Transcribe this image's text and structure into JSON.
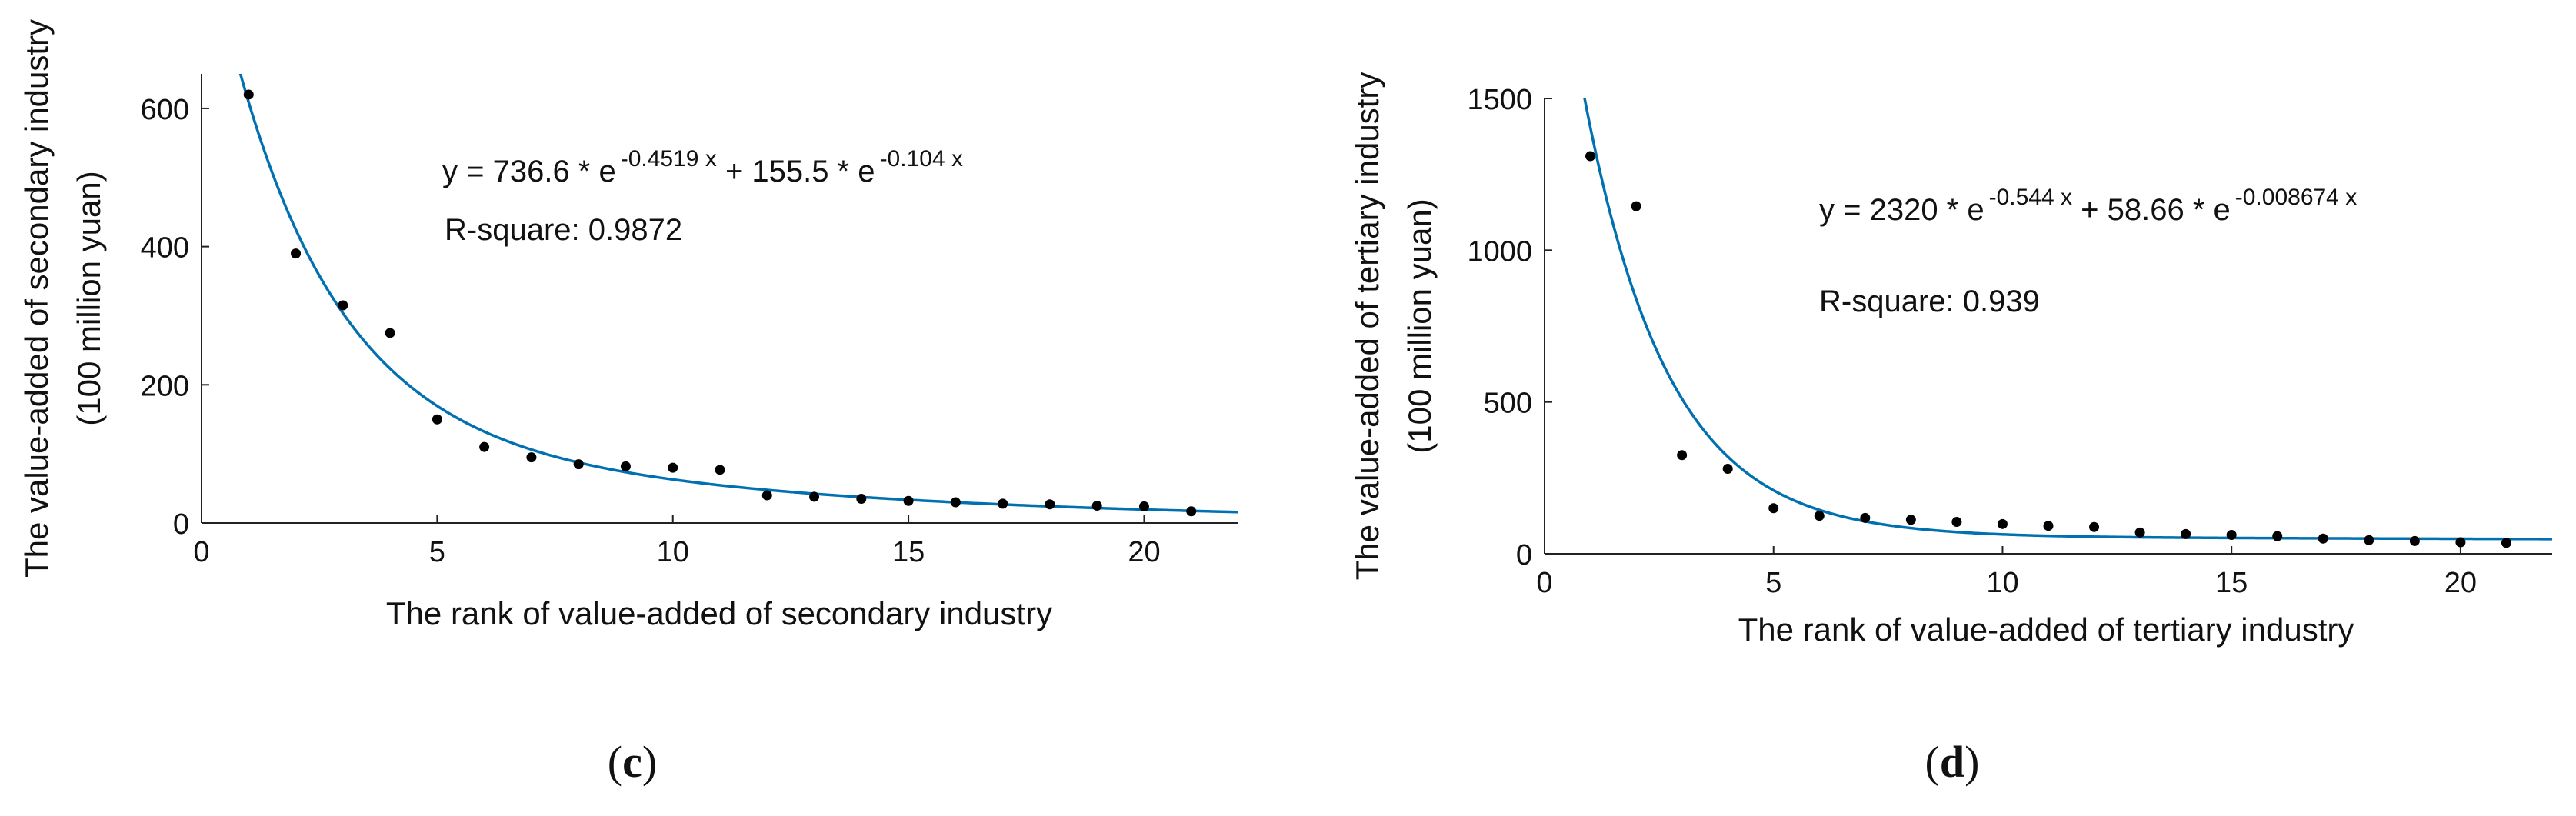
{
  "chart_data": [
    {
      "type": "scatter",
      "panel_label": "c",
      "xlabel": "The rank of value-added of secondary industry",
      "ylabel_line1": "The value-added of secondary industry",
      "ylabel_line2": "(100 million yuan)",
      "xlim": [
        0,
        22
      ],
      "ylim": [
        0,
        650
      ],
      "xticks": [
        0,
        5,
        10,
        15,
        20
      ],
      "yticks": [
        0,
        200,
        400,
        600
      ],
      "series": [
        {
          "name": "observed",
          "x": [
            1,
            2,
            3,
            4,
            5,
            6,
            7,
            8,
            9,
            10,
            11,
            12,
            13,
            14,
            15,
            16,
            17,
            18,
            19,
            20,
            21
          ],
          "y": [
            620,
            390,
            315,
            275,
            150,
            110,
            95,
            85,
            82,
            80,
            77,
            40,
            38,
            35,
            32,
            30,
            28,
            27,
            25,
            24,
            17
          ]
        }
      ],
      "fit": {
        "a": 736.6,
        "b": -0.4519,
        "c": 155.5,
        "d": -0.104,
        "line_color": "#0070b0",
        "equation_prefix": "y = 736.6 * e",
        "exp1": "-0.4519 x",
        "equation_mid": " + 155.5 * e",
        "exp2": "-0.104 x",
        "r_square": "R-square: 0.9872"
      }
    },
    {
      "type": "scatter",
      "panel_label": "d",
      "xlabel": "The rank of value-added of tertiary industry",
      "ylabel_line1": "The value-added of tertiary industry",
      "ylabel_line2": "(100 million yuan)",
      "xlim": [
        0,
        22
      ],
      "ylim": [
        0,
        1500
      ],
      "xticks": [
        0,
        5,
        10,
        15,
        20
      ],
      "yticks": [
        0,
        500,
        1000,
        1500
      ],
      "series": [
        {
          "name": "observed",
          "x": [
            1,
            2,
            3,
            4,
            5,
            6,
            7,
            8,
            9,
            10,
            11,
            12,
            13,
            14,
            15,
            16,
            17,
            18,
            19,
            20,
            21
          ],
          "y": [
            1310,
            1145,
            325,
            280,
            150,
            125,
            118,
            112,
            105,
            98,
            92,
            88,
            70,
            65,
            62,
            58,
            50,
            45,
            42,
            38,
            36
          ]
        }
      ],
      "fit": {
        "a": 2320,
        "b": -0.544,
        "c": 58.66,
        "d": -0.008674,
        "line_color": "#0070b0",
        "equation_prefix": "y = 2320 * e",
        "exp1": "-0.544 x",
        "equation_mid": " + 58.66 * e",
        "exp2": "-0.008674 x",
        "r_square": "R-square: 0.939"
      }
    }
  ]
}
